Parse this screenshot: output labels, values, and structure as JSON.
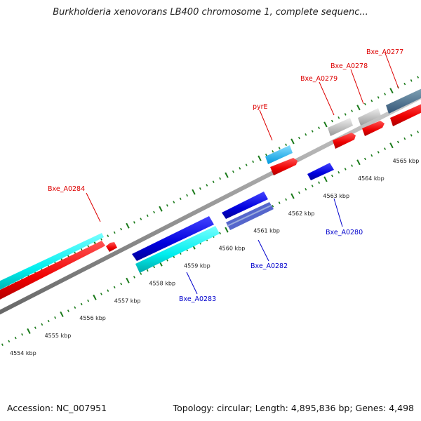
{
  "title": "Burkholderia xenovorans LB400 chromosome 1, complete sequenc...",
  "footer": {
    "accession": "Accession: NC_007951",
    "topology": "Topology: circular; Length: 4,895,836 bp; Genes: 4,498"
  },
  "colors": {
    "forward_label": "#dd0000",
    "reverse_label": "#0000cc",
    "backbone": "#888888",
    "tick": "#1a7a1a"
  },
  "kbp_ticks": [
    {
      "label": "4554 kbp"
    },
    {
      "label": "4555 kbp"
    },
    {
      "label": "4556 kbp"
    },
    {
      "label": "4557 kbp"
    },
    {
      "label": "4558 kbp"
    },
    {
      "label": "4559 kbp"
    },
    {
      "label": "4560 kbp"
    },
    {
      "label": "4561 kbp"
    },
    {
      "label": "4562 kbp"
    },
    {
      "label": "4563 kbp"
    },
    {
      "label": "4564 kbp"
    },
    {
      "label": "4565 kbp"
    }
  ],
  "gene_labels": [
    {
      "name": "Bxe_A0277",
      "strand": "forward"
    },
    {
      "name": "Bxe_A0278",
      "strand": "forward"
    },
    {
      "name": "Bxe_A0279",
      "strand": "forward"
    },
    {
      "name": "pyrE",
      "strand": "forward"
    },
    {
      "name": "Bxe_A0284",
      "strand": "forward"
    },
    {
      "name": "Bxe_A0280",
      "strand": "reverse"
    },
    {
      "name": "Bxe_A0282",
      "strand": "reverse"
    },
    {
      "name": "Bxe_A0283",
      "strand": "reverse"
    }
  ]
}
